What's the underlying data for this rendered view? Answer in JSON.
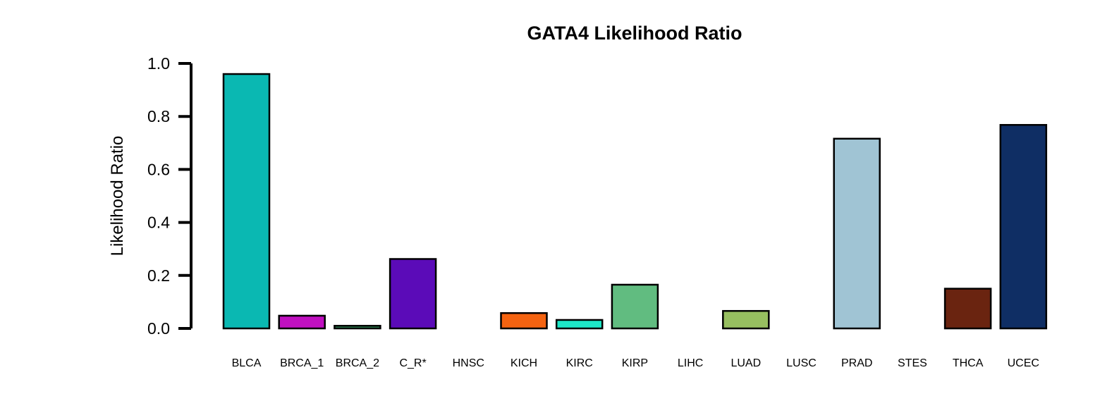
{
  "chart_data": {
    "type": "bar",
    "title": "GATA4 Likelihood Ratio",
    "xlabel": "",
    "ylabel": "Likelihood Ratio",
    "ylim": [
      0,
      1.0
    ],
    "yticks": [
      "0.0",
      "0.2",
      "0.4",
      "0.6",
      "0.8",
      "1.0"
    ],
    "grid": false,
    "legend": "none",
    "categories": [
      "BLCA",
      "BRCA_1",
      "BRCA_2",
      "C_R*",
      "HNSC",
      "KICH",
      "KIRC",
      "KIRP",
      "LIHC",
      "LUAD",
      "LUSC",
      "PRAD",
      "STES",
      "THCA",
      "UCEC"
    ],
    "values": [
      0.96,
      0.048,
      0.01,
      0.262,
      0.0,
      0.058,
      0.032,
      0.165,
      0.0,
      0.066,
      0.0,
      0.716,
      0.0,
      0.15,
      0.768
    ],
    "colors": [
      "#0ab8b2",
      "#c010c0",
      "#2e8b57",
      "#5b0bb8",
      "#ffffff",
      "#f46311",
      "#1de8c8",
      "#61bc80",
      "#ffffff",
      "#97bf60",
      "#ffffff",
      "#a0c4d4",
      "#ffffff",
      "#6a2410",
      "#0f2e64"
    ]
  }
}
